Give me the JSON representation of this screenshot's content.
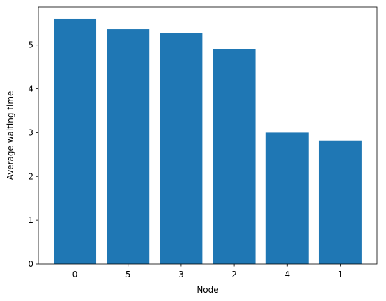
{
  "chart_data": {
    "type": "bar",
    "title": "",
    "xlabel": "Node",
    "ylabel": "Average waiting time",
    "categories": [
      "0",
      "5",
      "3",
      "2",
      "4",
      "1"
    ],
    "values": [
      5.6,
      5.36,
      5.28,
      4.91,
      3.0,
      2.82
    ],
    "ylim": [
      0,
      5.87
    ],
    "yticks": [
      "0",
      "1",
      "2",
      "3",
      "4",
      "5"
    ],
    "bar_color": "#1f77b4",
    "grid": false,
    "legend": "none"
  }
}
